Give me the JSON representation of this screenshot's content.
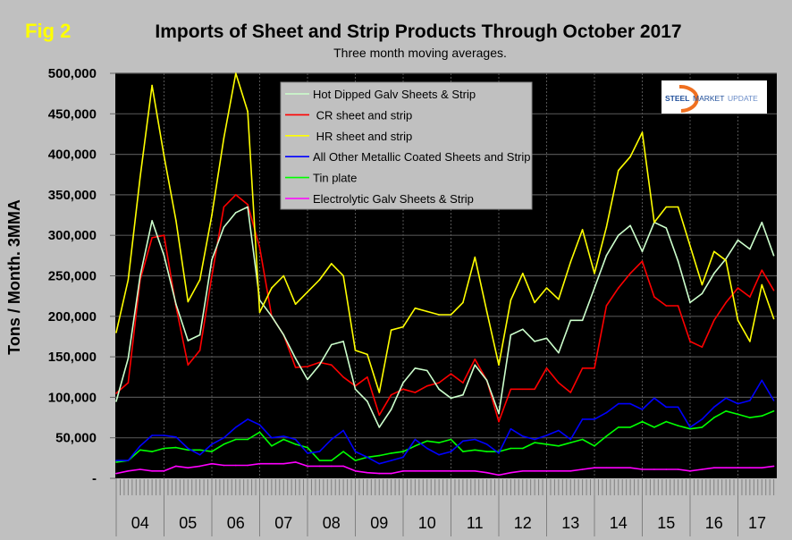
{
  "figure_label": "Fig 2",
  "title": "Imports of Sheet and Strip Products Through October 2017",
  "subtitle": "Three month moving averages.",
  "logo": {
    "text_1": "STEEL",
    "text_2": "MARKET",
    "text_3": "UPDATE"
  },
  "chart_data": {
    "type": "line",
    "title": "Imports of Sheet and Strip Products Through October 2017",
    "subtitle": "Three month moving averages.",
    "ylabel": "Tons / Month. 3MMA",
    "xlabel": "",
    "ylim": [
      0,
      500000
    ],
    "yticks": [
      {
        "value": 500000,
        "label": "500,000"
      },
      {
        "value": 450000,
        "label": "450,000"
      },
      {
        "value": 400000,
        "label": "400,000"
      },
      {
        "value": 350000,
        "label": "350,000"
      },
      {
        "value": 300000,
        "label": "300,000"
      },
      {
        "value": 250000,
        "label": "250,000"
      },
      {
        "value": 200000,
        "label": "200,000"
      },
      {
        "value": 150000,
        "label": "150,000"
      },
      {
        "value": 100000,
        "label": "100,000"
      },
      {
        "value": 50000,
        "label": "50,000"
      },
      {
        "value": 0,
        "label": "-"
      }
    ],
    "xticks": [
      "04",
      "05",
      "06",
      "07",
      "08",
      "09",
      "10",
      "11",
      "12",
      "13",
      "14",
      "15",
      "16",
      "17"
    ],
    "xrange": [
      "2004-01",
      "2017-10"
    ],
    "grid": true,
    "legend_position": "top-center",
    "background": "#000000",
    "x": [
      "2004-01",
      "2004-04",
      "2004-07",
      "2004-10",
      "2005-01",
      "2005-04",
      "2005-07",
      "2005-10",
      "2006-01",
      "2006-04",
      "2006-07",
      "2006-10",
      "2007-01",
      "2007-04",
      "2007-07",
      "2007-10",
      "2008-01",
      "2008-04",
      "2008-07",
      "2008-10",
      "2009-01",
      "2009-04",
      "2009-07",
      "2009-10",
      "2010-01",
      "2010-04",
      "2010-07",
      "2010-10",
      "2011-01",
      "2011-04",
      "2011-07",
      "2011-10",
      "2012-01",
      "2012-04",
      "2012-07",
      "2012-10",
      "2013-01",
      "2013-04",
      "2013-07",
      "2013-10",
      "2014-01",
      "2014-04",
      "2014-07",
      "2014-10",
      "2015-01",
      "2015-04",
      "2015-07",
      "2015-10",
      "2016-01",
      "2016-04",
      "2016-07",
      "2016-10",
      "2017-01",
      "2017-04",
      "2017-07",
      "2017-10"
    ],
    "series": [
      {
        "name": "Hot Dipped Galv Sheets & Strip",
        "color": "#ccffcc",
        "values": [
          95000,
          148000,
          250000,
          318000,
          275000,
          215000,
          170000,
          177000,
          270000,
          310000,
          328000,
          335000,
          220000,
          200000,
          177000,
          148000,
          122000,
          140000,
          165000,
          169000,
          110000,
          95000,
          63000,
          85000,
          118000,
          136000,
          133000,
          110000,
          99000,
          103000,
          140000,
          121000,
          80000,
          177000,
          184000,
          169000,
          173000,
          155000,
          195000,
          195000,
          235000,
          275000,
          300000,
          312000,
          280000,
          316000,
          309000,
          268000,
          217000,
          228000,
          253000,
          271000,
          294000,
          283000,
          316000,
          275000
        ]
      },
      {
        "name": " CR sheet and strip",
        "color": "#ff0000",
        "values": [
          105000,
          118000,
          245000,
          297000,
          300000,
          212000,
          140000,
          158000,
          250000,
          335000,
          350000,
          338000,
          285000,
          200000,
          177000,
          137000,
          138000,
          143000,
          140000,
          125000,
          114000,
          125000,
          78000,
          103000,
          110000,
          106000,
          114000,
          118000,
          129000,
          118000,
          147000,
          121000,
          70000,
          110000,
          110000,
          110000,
          136000,
          118000,
          106000,
          136000,
          136000,
          213000,
          235000,
          253000,
          268000,
          224000,
          213000,
          213000,
          169000,
          162000,
          195000,
          217000,
          235000,
          224000,
          257000,
          232000
        ]
      },
      {
        "name": " HR sheet and strip",
        "color": "#ffff00",
        "values": [
          180000,
          245000,
          372000,
          485000,
          398000,
          318000,
          218000,
          245000,
          325000,
          420000,
          500000,
          453000,
          205000,
          235000,
          250000,
          215000,
          230000,
          245000,
          265000,
          250000,
          158000,
          153000,
          106000,
          183000,
          187000,
          210000,
          206000,
          202000,
          202000,
          217000,
          273000,
          206000,
          140000,
          220000,
          253000,
          217000,
          235000,
          221000,
          267000,
          307000,
          253000,
          310000,
          380000,
          397000,
          427000,
          316000,
          335000,
          335000,
          287000,
          239000,
          280000,
          269000,
          195000,
          169000,
          239000,
          197000
        ]
      },
      {
        "name": "All Other Metallic Coated Sheets and Strip",
        "color": "#0000ff",
        "values": [
          22000,
          22000,
          40000,
          53000,
          53000,
          51000,
          37000,
          29000,
          42000,
          50000,
          63000,
          73000,
          66000,
          50000,
          52000,
          48000,
          31000,
          33000,
          48000,
          59000,
          33000,
          26000,
          18000,
          22000,
          26000,
          48000,
          37000,
          29000,
          33000,
          46000,
          48000,
          42000,
          31000,
          61000,
          52000,
          48000,
          53000,
          59000,
          48000,
          73000,
          73000,
          81000,
          92000,
          92000,
          85000,
          99000,
          88000,
          88000,
          63000,
          73000,
          88000,
          99000,
          92000,
          96000,
          121000,
          96000
        ]
      },
      {
        "name": "Tin plate",
        "color": "#00ff00",
        "values": [
          20000,
          22000,
          35000,
          33000,
          37000,
          38000,
          35000,
          35000,
          33000,
          42000,
          48000,
          48000,
          57000,
          40000,
          48000,
          42000,
          38000,
          22000,
          22000,
          33000,
          22000,
          26000,
          28000,
          31000,
          33000,
          40000,
          46000,
          44000,
          48000,
          33000,
          35000,
          33000,
          33000,
          37000,
          37000,
          44000,
          42000,
          40000,
          44000,
          48000,
          40000,
          52000,
          63000,
          63000,
          70000,
          63000,
          70000,
          65000,
          61000,
          63000,
          75000,
          83000,
          79000,
          75000,
          77000,
          83000
        ]
      },
      {
        "name": "Electrolytic Galv Sheets & Strip",
        "color": "#ff00ff",
        "values": [
          6000,
          9000,
          11000,
          9000,
          9000,
          15000,
          13000,
          15000,
          18000,
          16000,
          16000,
          16000,
          18000,
          18000,
          18000,
          20000,
          15000,
          15000,
          15000,
          15000,
          9000,
          7000,
          6000,
          6000,
          9000,
          9000,
          9000,
          9000,
          9000,
          9000,
          9000,
          7000,
          4000,
          7000,
          9000,
          9000,
          9000,
          9000,
          9000,
          11000,
          13000,
          13000,
          13000,
          13000,
          11000,
          11000,
          11000,
          11000,
          9000,
          11000,
          13000,
          13000,
          13000,
          13000,
          13000,
          15000
        ]
      }
    ]
  }
}
